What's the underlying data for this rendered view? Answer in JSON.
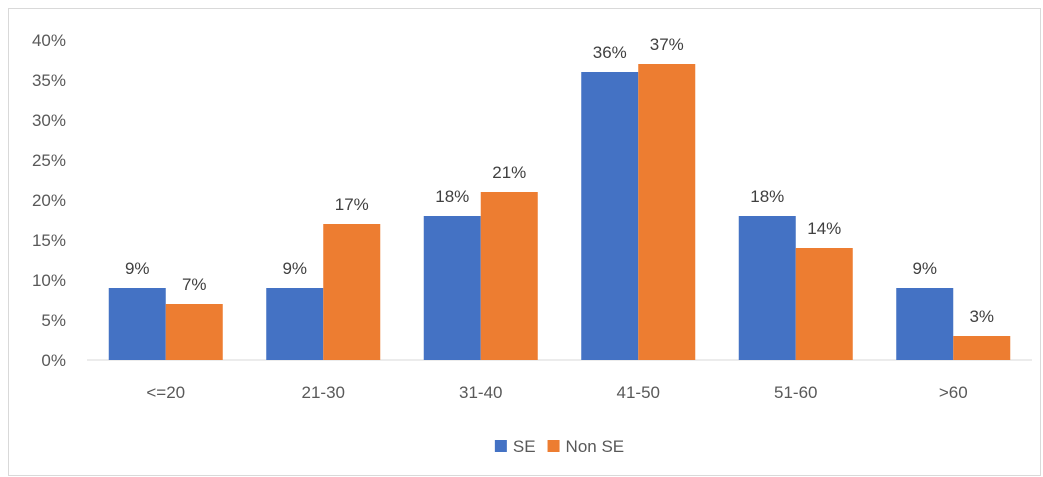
{
  "chart_data": {
    "type": "bar",
    "categories": [
      "<=20",
      "21-30",
      "31-40",
      "41-50",
      "51-60",
      ">60"
    ],
    "series": [
      {
        "name": "SE",
        "color": "#4472C4",
        "values": [
          0.09,
          0.09,
          0.18,
          0.36,
          0.18,
          0.09
        ],
        "labels": [
          "9%",
          "9%",
          "18%",
          "36%",
          "18%",
          "9%"
        ]
      },
      {
        "name": "Non SE",
        "color": "#ED7D31",
        "values": [
          0.07,
          0.17,
          0.21,
          0.37,
          0.14,
          0.03
        ],
        "labels": [
          "7%",
          "17%",
          "21%",
          "37%",
          "14%",
          "3%"
        ]
      }
    ],
    "ylim": [
      0,
      0.4
    ],
    "yticks": [
      0,
      0.05,
      0.1,
      0.15,
      0.2,
      0.25,
      0.3,
      0.35,
      0.4
    ],
    "ytick_labels": [
      "0%",
      "5%",
      "10%",
      "15%",
      "20%",
      "25%",
      "30%",
      "35%",
      "40%"
    ],
    "grid": false,
    "legend_position": "bottom",
    "title": "",
    "xlabel": "",
    "ylabel": ""
  }
}
